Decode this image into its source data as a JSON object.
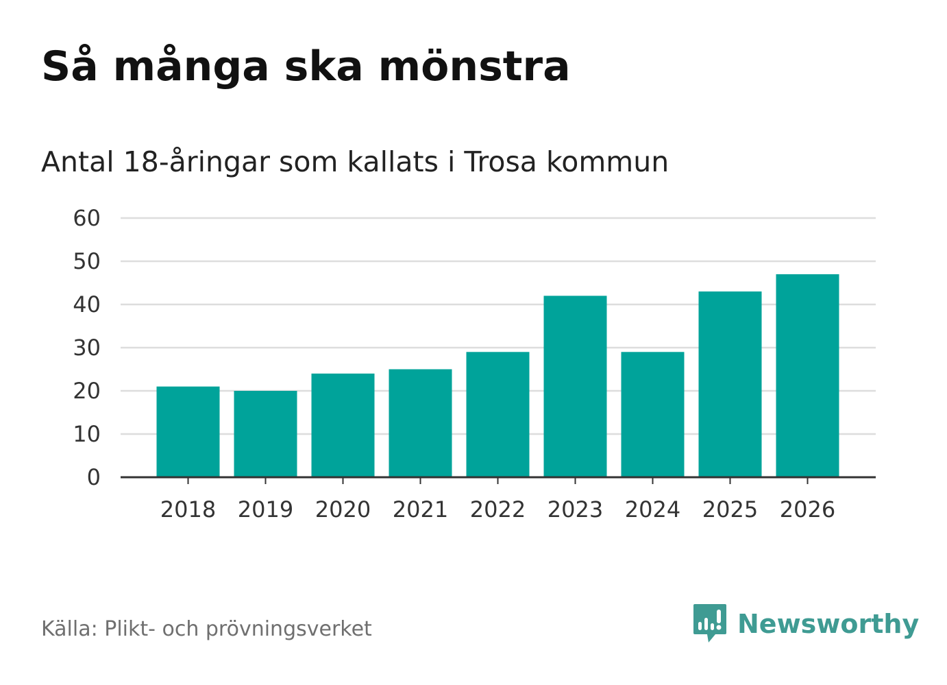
{
  "title": "Så många ska mönstra",
  "subtitle": "Antal 18-åringar som kallats i Trosa kommun",
  "source": "Källa: Plikt- och prövningsverket",
  "brand": {
    "name": "Newsworthy",
    "icon": "newsworthy-logo-icon",
    "color": "#3f9b93"
  },
  "chart_data": {
    "type": "bar",
    "title": "Så många ska mönstra",
    "subtitle": "Antal 18-åringar som kallats i Trosa kommun",
    "xlabel": "",
    "ylabel": "",
    "categories": [
      "2018",
      "2019",
      "2020",
      "2021",
      "2022",
      "2023",
      "2024",
      "2025",
      "2026"
    ],
    "values": [
      21,
      20,
      24,
      25,
      29,
      42,
      29,
      43,
      47
    ],
    "ylim": [
      0,
      60
    ],
    "yticks": [
      "0",
      "10",
      "20",
      "30",
      "40",
      "50",
      "60"
    ],
    "grid": true,
    "legend": "none",
    "bar_color": "#00a39a",
    "grid_color": "#dddddd",
    "axis_color": "#333333"
  }
}
